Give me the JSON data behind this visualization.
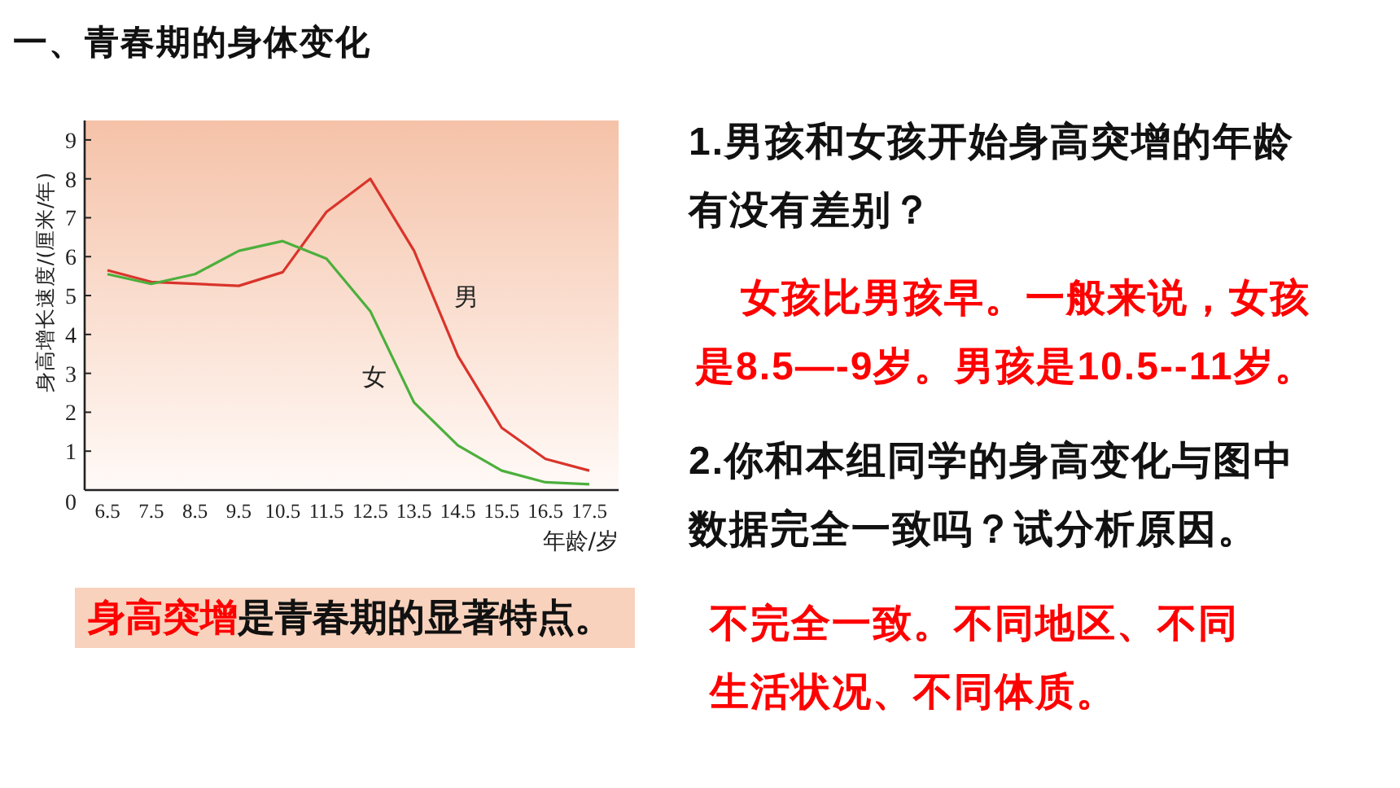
{
  "chart_data": {
    "type": "line",
    "title": "一、青春期的身体变化",
    "xlabel": "年龄/岁",
    "ylabel": "身高增长速度/(厘米/年)",
    "categories": [
      "6.5",
      "7.5",
      "8.5",
      "9.5",
      "10.5",
      "11.5",
      "12.5",
      "13.5",
      "14.5",
      "15.5",
      "16.5",
      "17.5"
    ],
    "series": [
      {
        "name": "男",
        "color": "#d9342b",
        "values": [
          5.65,
          5.35,
          5.3,
          5.25,
          5.6,
          7.15,
          8.0,
          6.15,
          3.45,
          1.6,
          0.8,
          0.5
        ]
      },
      {
        "name": "女",
        "color": "#4caf3c",
        "values": [
          5.55,
          5.3,
          5.55,
          6.15,
          6.4,
          5.95,
          4.6,
          2.25,
          1.15,
          0.5,
          0.2,
          0.15
        ]
      }
    ],
    "ylim": [
      0,
      9.5
    ],
    "yticks": [
      0,
      1,
      2,
      3,
      4,
      5,
      6,
      7,
      8,
      9
    ],
    "grid": false,
    "legend": false,
    "marker": "none",
    "line_style": "solid",
    "annotations": [
      "1.男孩和女孩开始身高突增的年龄有没有差别？",
      "女孩比男孩早。一般来说，女孩是8.5—-9岁。男孩是10.5--11岁。",
      "2.你和本组同学的身高变化与图中数据完全一致吗？试分析原因。",
      "不完全一致。不同地区、不同生活状况、不同体质。",
      "身高突增",
      "是青春期的显著特点。"
    ]
  }
}
